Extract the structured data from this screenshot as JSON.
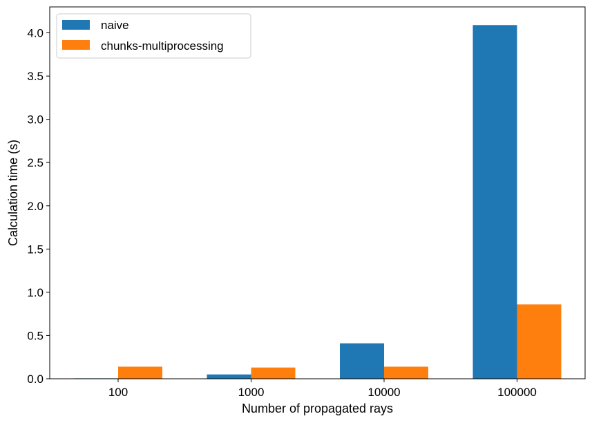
{
  "chart_data": {
    "type": "bar",
    "categories": [
      "100",
      "1000",
      "10000",
      "100000"
    ],
    "series": [
      {
        "name": "naive",
        "values": [
          0.005,
          0.05,
          0.41,
          4.09
        ],
        "color": "#1f77b4"
      },
      {
        "name": "chunks-multiprocessing",
        "values": [
          0.14,
          0.13,
          0.14,
          0.86
        ],
        "color": "#ff7f0e"
      }
    ],
    "xlabel": "Number of propagated rays",
    "ylabel": "Calculation time (s)",
    "ylim": [
      0,
      4.3
    ],
    "yticks": [
      "0.0",
      "0.5",
      "1.0",
      "1.5",
      "2.0",
      "2.5",
      "3.0",
      "3.5",
      "4.0"
    ],
    "grid": false,
    "legend_position": "top-left"
  }
}
